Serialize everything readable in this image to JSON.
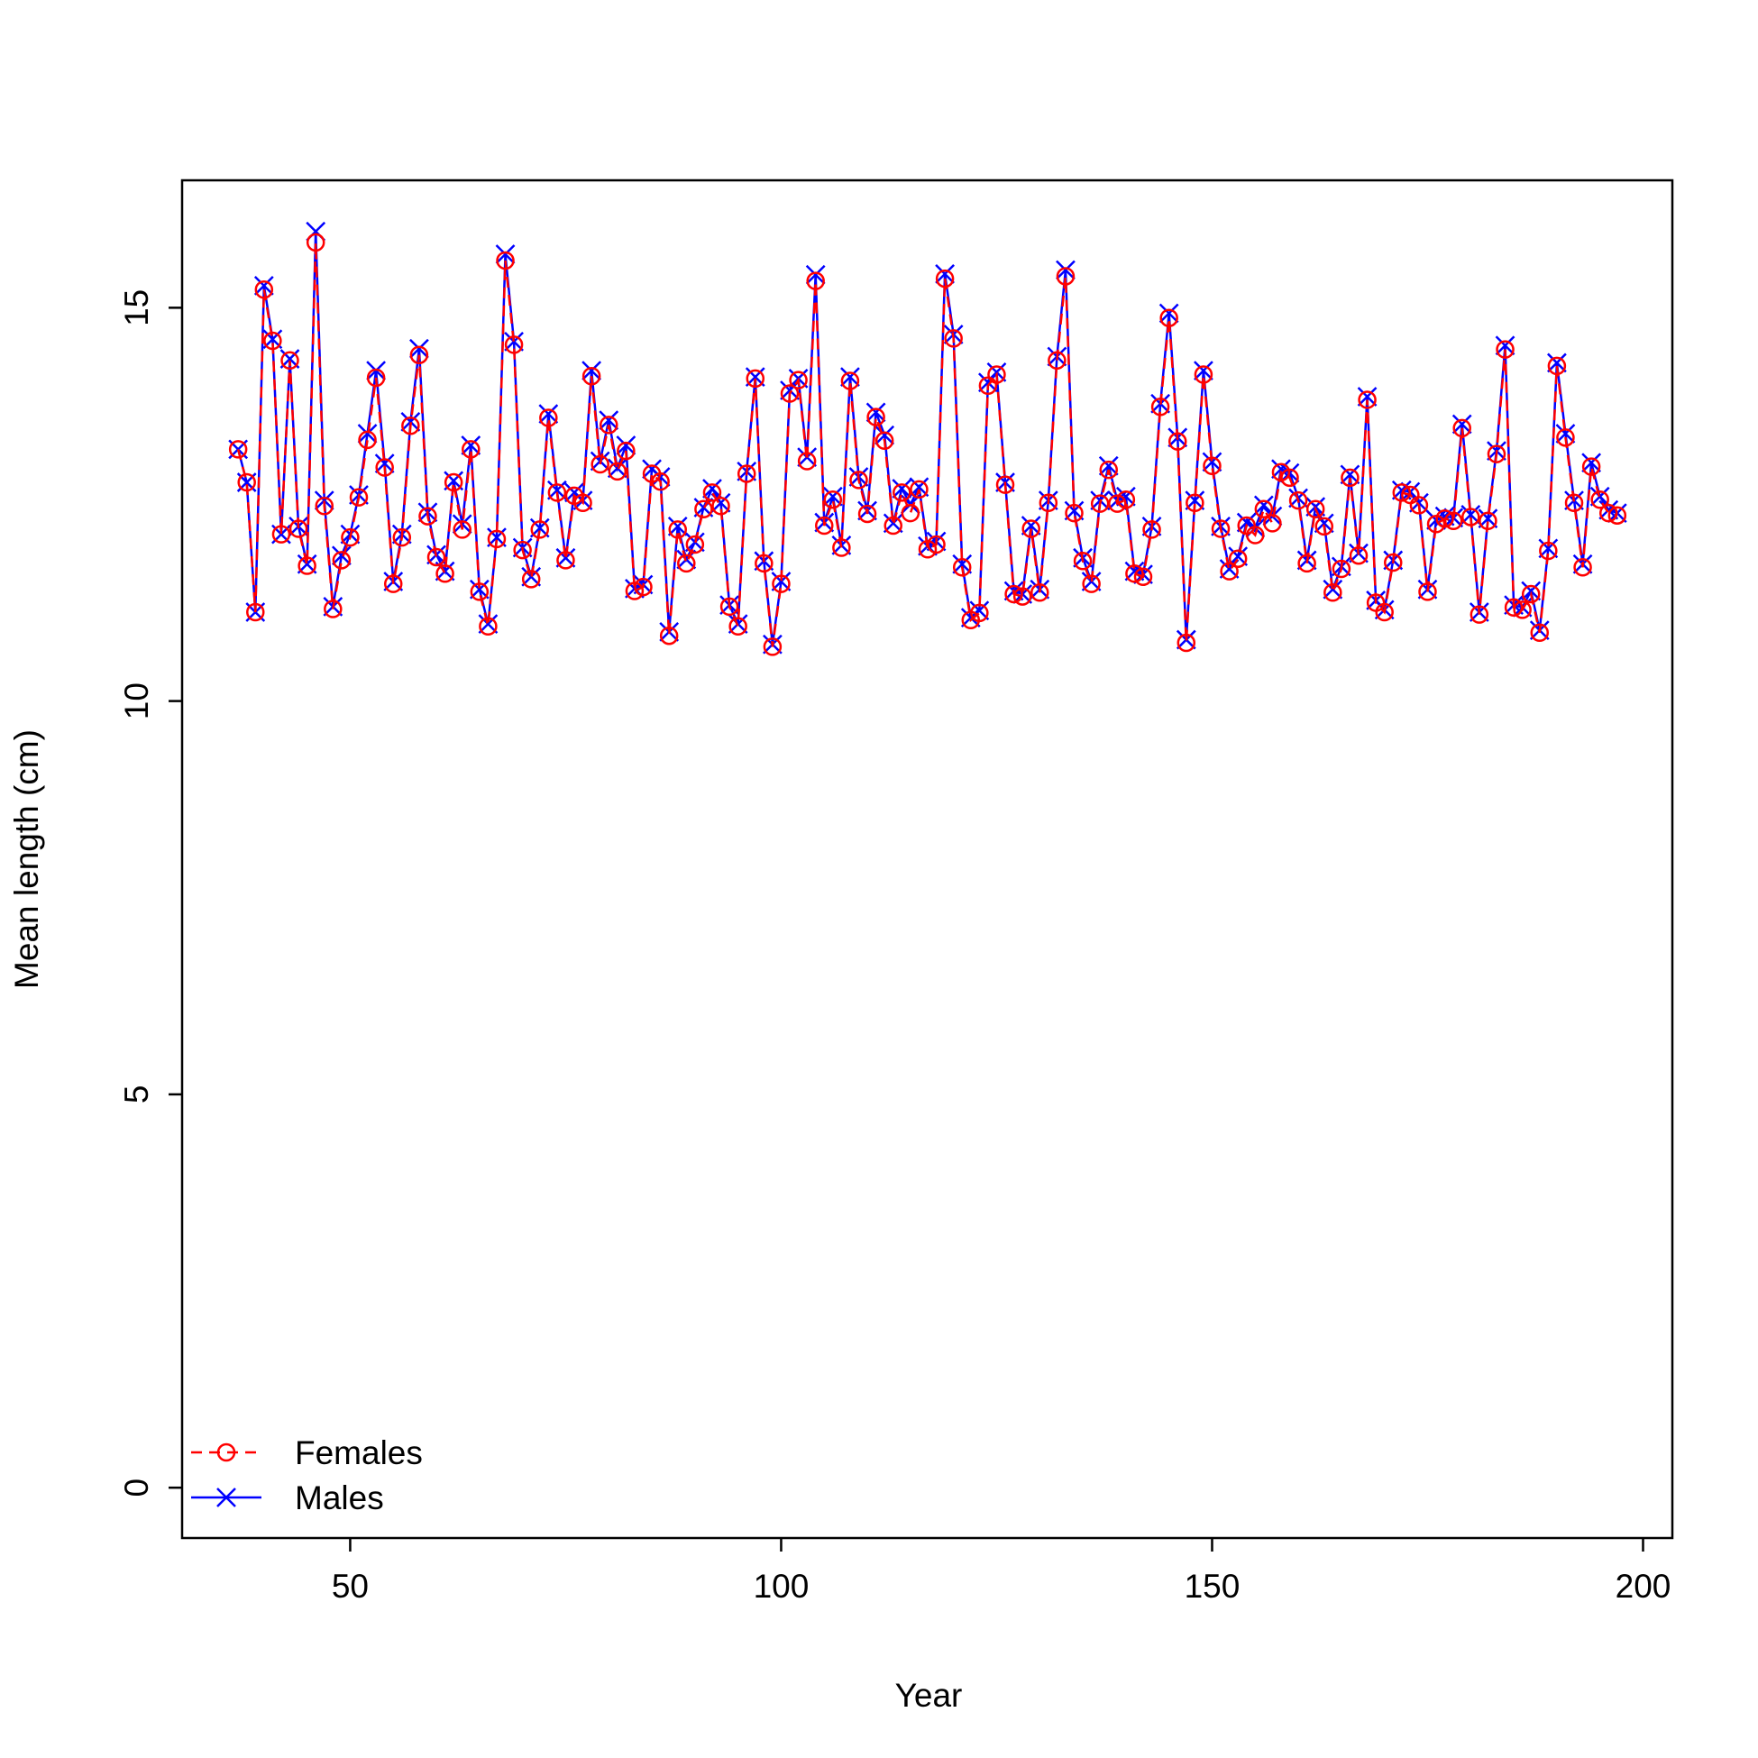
{
  "chart_data": {
    "type": "line",
    "xlabel": "Year",
    "ylabel": "Mean length (cm)",
    "x": [
      37,
      38,
      39,
      40,
      41,
      42,
      43,
      44,
      45,
      46,
      47,
      48,
      49,
      50,
      51,
      52,
      53,
      54,
      55,
      56,
      57,
      58,
      59,
      60,
      61,
      62,
      63,
      64,
      65,
      66,
      67,
      68,
      69,
      70,
      71,
      72,
      73,
      74,
      75,
      76,
      77,
      78,
      79,
      80,
      81,
      82,
      83,
      84,
      85,
      86,
      87,
      88,
      89,
      90,
      91,
      92,
      93,
      94,
      95,
      96,
      97,
      98,
      99,
      100,
      101,
      102,
      103,
      104,
      105,
      106,
      107,
      108,
      109,
      110,
      111,
      112,
      113,
      114,
      115,
      116,
      117,
      118,
      119,
      120,
      121,
      122,
      123,
      124,
      125,
      126,
      127,
      128,
      129,
      130,
      131,
      132,
      133,
      134,
      135,
      136,
      137,
      138,
      139,
      140,
      141,
      142,
      143,
      144,
      145,
      146,
      147,
      148,
      149,
      150,
      151,
      152,
      153,
      154,
      155,
      156,
      157,
      158,
      159,
      160,
      161,
      162,
      163,
      164,
      165,
      166,
      167,
      168,
      169,
      170,
      171,
      172,
      173,
      174,
      175,
      176,
      177,
      178,
      179,
      180,
      181,
      182,
      183,
      184,
      185,
      186,
      187,
      188,
      189,
      190,
      191,
      192,
      193,
      194,
      195,
      196,
      197
    ],
    "series": [
      {
        "name": "Females",
        "color": "#ff0000",
        "marker": "circle",
        "dash": true,
        "values": [
          13.2,
          12.78,
          11.13,
          15.23,
          14.58,
          12.12,
          14.33,
          12.19,
          11.72,
          15.83,
          12.48,
          11.17,
          11.79,
          12.08,
          12.59,
          13.32,
          14.11,
          12.97,
          11.49,
          12.08,
          13.5,
          14.4,
          12.35,
          11.83,
          11.62,
          12.78,
          12.18,
          13.2,
          11.39,
          10.95,
          12.06,
          15.6,
          14.53,
          11.92,
          11.55,
          12.18,
          13.6,
          12.65,
          11.79,
          12.61,
          12.52,
          14.13,
          13.01,
          13.51,
          12.92,
          13.18,
          11.4,
          11.45,
          12.89,
          12.79,
          10.83,
          12.18,
          11.75,
          11.99,
          12.44,
          12.65,
          12.48,
          11.2,
          10.95,
          12.89,
          14.1,
          11.75,
          10.69,
          11.49,
          13.91,
          14.08,
          13.05,
          15.34,
          12.23,
          12.56,
          11.95,
          14.07,
          12.81,
          12.38,
          13.61,
          13.31,
          12.23,
          12.65,
          12.39,
          12.69,
          11.93,
          11.99,
          15.37,
          14.61,
          11.7,
          11.03,
          11.12,
          14.01,
          14.15,
          12.75,
          11.36,
          11.33,
          12.19,
          11.38,
          12.52,
          14.33,
          15.4,
          12.39,
          11.78,
          11.49,
          12.51,
          12.94,
          12.51,
          12.56,
          11.62,
          11.58,
          12.18,
          13.74,
          14.87,
          13.3,
          10.74,
          12.52,
          14.15,
          12.99,
          12.19,
          11.65,
          11.81,
          12.23,
          12.11,
          12.44,
          12.26,
          12.91,
          12.84,
          12.55,
          11.75,
          12.44,
          12.22,
          11.38,
          11.68,
          12.84,
          11.85,
          13.83,
          11.25,
          11.13,
          11.76,
          12.65,
          12.62,
          12.49,
          11.39,
          12.25,
          12.32,
          12.29,
          13.47,
          12.34,
          11.1,
          12.29,
          13.14,
          14.47,
          11.19,
          11.16,
          11.36,
          10.87,
          11.91,
          14.26,
          13.35,
          12.52,
          11.7,
          12.98,
          12.56,
          12.39,
          12.36
        ]
      },
      {
        "name": "Males",
        "color": "#0000ff",
        "marker": "cross",
        "dash": false,
        "values": [
          13.2,
          12.78,
          11.13,
          15.28,
          14.6,
          12.12,
          14.35,
          12.22,
          11.74,
          15.97,
          12.55,
          11.2,
          11.85,
          12.12,
          12.62,
          13.4,
          14.2,
          13.02,
          11.52,
          12.12,
          13.55,
          14.48,
          12.4,
          11.86,
          11.65,
          12.8,
          12.25,
          13.25,
          11.42,
          10.98,
          12.08,
          15.68,
          14.57,
          11.95,
          11.58,
          12.2,
          13.65,
          12.68,
          11.82,
          12.65,
          12.55,
          14.2,
          13.05,
          13.57,
          12.96,
          13.25,
          11.43,
          11.48,
          12.95,
          12.85,
          10.88,
          12.22,
          11.8,
          12.02,
          12.46,
          12.7,
          12.52,
          11.22,
          10.98,
          12.92,
          14.12,
          11.78,
          10.72,
          11.52,
          13.95,
          14.1,
          13.1,
          15.42,
          12.27,
          12.6,
          11.98,
          14.12,
          12.85,
          12.42,
          13.67,
          13.38,
          12.26,
          12.7,
          12.5,
          12.72,
          11.97,
          12.03,
          15.43,
          14.66,
          11.74,
          11.06,
          11.15,
          14.05,
          14.18,
          12.78,
          11.4,
          11.36,
          12.23,
          11.42,
          12.55,
          14.38,
          15.48,
          12.42,
          11.82,
          11.52,
          12.55,
          12.99,
          12.55,
          12.6,
          11.65,
          11.61,
          12.22,
          13.78,
          14.93,
          13.35,
          10.78,
          12.55,
          14.2,
          13.04,
          12.22,
          11.68,
          11.84,
          12.27,
          12.2,
          12.49,
          12.35,
          12.95,
          12.9,
          12.58,
          11.79,
          12.47,
          12.26,
          11.42,
          11.71,
          12.88,
          11.88,
          13.87,
          11.28,
          11.16,
          11.79,
          12.68,
          12.66,
          12.52,
          11.42,
          12.3,
          12.35,
          12.33,
          13.52,
          12.37,
          11.13,
          12.32,
          13.18,
          14.52,
          11.22,
          11.19,
          11.4,
          10.9,
          11.94,
          14.3,
          13.4,
          12.55,
          11.74,
          13.03,
          12.6,
          12.43,
          12.39
        ]
      }
    ],
    "xlim": [
      30.5,
      203.4
    ],
    "ylim": [
      -0.64,
      16.62
    ],
    "xticks": [
      50,
      100,
      150,
      200
    ],
    "yticks": [
      0,
      5,
      10,
      15
    ],
    "legend": "bottomleft"
  }
}
